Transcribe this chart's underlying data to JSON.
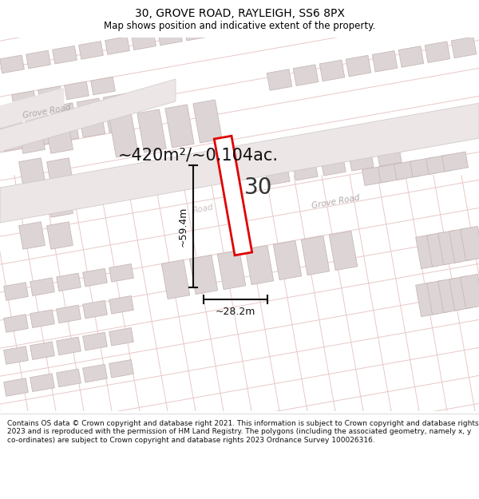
{
  "title": "30, GROVE ROAD, RAYLEIGH, SS6 8PX",
  "subtitle": "Map shows position and indicative extent of the property.",
  "footer": "Contains OS data © Crown copyright and database right 2021. This information is subject to Crown copyright and database rights 2023 and is reproduced with the permission of HM Land Registry. The polygons (including the associated geometry, namely x, y co-ordinates) are subject to Crown copyright and database rights 2023 Ordnance Survey 100026316.",
  "area_text": "~420m²/~0.104ac.",
  "width_text": "~28.2m",
  "height_text": "~59.4m",
  "label_30": "30",
  "bg_color": "#f7f2f2",
  "road_stripe_color": "#e8c8c8",
  "road_label_color": "#b0a8a8",
  "building_fill": "#ddd5d5",
  "building_edge": "#c8b8b8",
  "highlight_color": "#e00000",
  "highlight_fill": "#ffffff",
  "measure_color": "#111111",
  "title_fontsize": 10,
  "subtitle_fontsize": 8.5,
  "area_fontsize": 15,
  "label_fontsize": 20,
  "measure_fontsize": 9,
  "footer_fontsize": 6.5
}
